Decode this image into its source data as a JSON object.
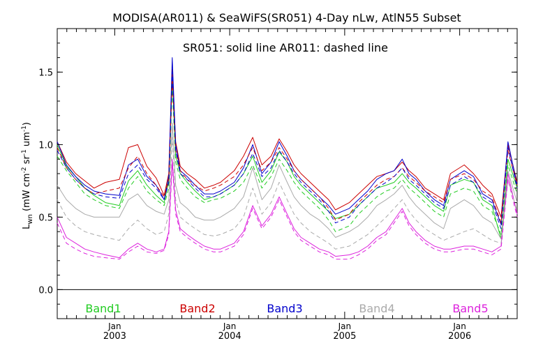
{
  "chart_data": {
    "type": "line",
    "title": "MODISA(AR011) & SeaWiFS(SR051) 4-Day nLw, AtlN55 Subset",
    "subtitle": "SR051: solid line   AR011: dashed line",
    "ylabel": "L_wn (mW cm^-2 sr^-1 um^-1)",
    "ylabel_parts": {
      "main": "L",
      "sub": "wn",
      "units_a": " (mW cm",
      "sup1": "-2",
      "units_b": " sr",
      "sup2": "-1",
      "units_c": " um",
      "sup3": "-1",
      "units_d": ")"
    },
    "xlim": [
      2002.5,
      2006.5
    ],
    "ylim": [
      -0.2,
      1.8
    ],
    "yticks": [
      0.0,
      0.5,
      1.0,
      1.5
    ],
    "ytick_labels": [
      "0.0",
      "0.5",
      "1.0",
      "1.5"
    ],
    "xticks": [
      2003,
      2004,
      2005,
      2006
    ],
    "xtick_month": [
      "Jan",
      "Jan",
      "Jan",
      "Jan"
    ],
    "xtick_year": [
      "2003",
      "2004",
      "2005",
      "2006"
    ],
    "zero_line": 0.0,
    "legend": [
      {
        "label": "Band1",
        "color": "#22cc22"
      },
      {
        "label": "Band2",
        "color": "#cc0000"
      },
      {
        "label": "Band3",
        "color": "#0000cc"
      },
      {
        "label": "Band4",
        "color": "#aaaaaa"
      },
      {
        "label": "Band5",
        "color": "#dd22dd"
      }
    ],
    "legend_placement": "bottom-inside",
    "x": [
      2002.5,
      2002.58,
      2002.66,
      2002.74,
      2002.82,
      2002.92,
      2003.04,
      2003.12,
      2003.2,
      2003.28,
      2003.36,
      2003.43,
      2003.47,
      2003.5,
      2003.53,
      2003.57,
      2003.63,
      2003.7,
      2003.78,
      2003.86,
      2003.92,
      2004.04,
      2004.12,
      2004.2,
      2004.28,
      2004.36,
      2004.43,
      2004.5,
      2004.56,
      2004.62,
      2004.7,
      2004.78,
      2004.86,
      2004.92,
      2005.04,
      2005.12,
      2005.2,
      2005.28,
      2005.36,
      2005.43,
      2005.5,
      2005.56,
      2005.62,
      2005.7,
      2005.78,
      2005.86,
      2005.92,
      2006.04,
      2006.12,
      2006.2,
      2006.28,
      2006.36,
      2006.42,
      2006.5
    ],
    "series": [
      {
        "key": "band1",
        "color": "#22cc22",
        "style": "solid",
        "values": [
          1.0,
          0.85,
          0.78,
          0.7,
          0.65,
          0.6,
          0.58,
          0.75,
          0.82,
          0.72,
          0.65,
          0.6,
          0.75,
          1.45,
          0.92,
          0.8,
          0.74,
          0.68,
          0.62,
          0.64,
          0.66,
          0.72,
          0.8,
          0.92,
          0.74,
          0.82,
          0.95,
          0.88,
          0.78,
          0.72,
          0.66,
          0.6,
          0.54,
          0.49,
          0.52,
          0.58,
          0.64,
          0.7,
          0.72,
          0.74,
          0.8,
          0.74,
          0.7,
          0.64,
          0.58,
          0.54,
          0.72,
          0.76,
          0.74,
          0.62,
          0.58,
          0.35,
          0.9,
          0.7
        ]
      },
      {
        "key": "band2",
        "color": "#cc0000",
        "style": "solid",
        "values": [
          1.02,
          0.88,
          0.8,
          0.75,
          0.7,
          0.74,
          0.76,
          0.98,
          1.0,
          0.85,
          0.77,
          0.65,
          0.8,
          1.52,
          1.02,
          0.85,
          0.8,
          0.76,
          0.7,
          0.72,
          0.74,
          0.82,
          0.92,
          1.05,
          0.86,
          0.92,
          1.04,
          0.95,
          0.86,
          0.8,
          0.74,
          0.68,
          0.62,
          0.55,
          0.6,
          0.66,
          0.72,
          0.78,
          0.8,
          0.82,
          0.88,
          0.82,
          0.78,
          0.7,
          0.66,
          0.62,
          0.8,
          0.86,
          0.8,
          0.72,
          0.66,
          0.5,
          1.0,
          0.74
        ]
      },
      {
        "key": "band3",
        "color": "#0000cc",
        "style": "solid",
        "values": [
          1.02,
          0.86,
          0.78,
          0.72,
          0.68,
          0.66,
          0.65,
          0.86,
          0.9,
          0.78,
          0.72,
          0.62,
          0.78,
          1.6,
          1.0,
          0.82,
          0.78,
          0.72,
          0.66,
          0.66,
          0.68,
          0.74,
          0.84,
          1.0,
          0.8,
          0.88,
          1.02,
          0.92,
          0.82,
          0.76,
          0.7,
          0.64,
          0.58,
          0.52,
          0.56,
          0.62,
          0.68,
          0.76,
          0.8,
          0.82,
          0.9,
          0.8,
          0.76,
          0.68,
          0.62,
          0.58,
          0.76,
          0.82,
          0.78,
          0.66,
          0.62,
          0.45,
          1.02,
          0.72
        ]
      },
      {
        "key": "band4",
        "color": "#aaaaaa",
        "style": "solid",
        "values": [
          0.72,
          0.62,
          0.56,
          0.52,
          0.5,
          0.5,
          0.5,
          0.62,
          0.66,
          0.58,
          0.54,
          0.52,
          0.62,
          1.15,
          0.72,
          0.6,
          0.56,
          0.5,
          0.48,
          0.48,
          0.5,
          0.56,
          0.64,
          0.84,
          0.62,
          0.7,
          0.86,
          0.74,
          0.64,
          0.58,
          0.52,
          0.48,
          0.42,
          0.36,
          0.4,
          0.44,
          0.5,
          0.58,
          0.62,
          0.66,
          0.72,
          0.64,
          0.58,
          0.52,
          0.46,
          0.42,
          0.56,
          0.62,
          0.58,
          0.5,
          0.46,
          0.35,
          0.82,
          0.6
        ]
      },
      {
        "key": "band5",
        "color": "#dd22dd",
        "style": "solid",
        "values": [
          0.5,
          0.36,
          0.32,
          0.28,
          0.26,
          0.24,
          0.22,
          0.28,
          0.32,
          0.28,
          0.26,
          0.28,
          0.4,
          0.9,
          0.55,
          0.42,
          0.38,
          0.34,
          0.3,
          0.28,
          0.28,
          0.32,
          0.4,
          0.58,
          0.44,
          0.52,
          0.64,
          0.52,
          0.42,
          0.36,
          0.32,
          0.28,
          0.26,
          0.23,
          0.24,
          0.26,
          0.3,
          0.36,
          0.4,
          0.48,
          0.56,
          0.46,
          0.4,
          0.34,
          0.3,
          0.28,
          0.28,
          0.3,
          0.3,
          0.28,
          0.26,
          0.3,
          0.8,
          0.52
        ]
      },
      {
        "key": "band1_modis",
        "color": "#22cc22",
        "style": "dashed",
        "values": [
          0.92,
          0.82,
          0.74,
          0.66,
          0.62,
          0.58,
          0.56,
          0.7,
          0.78,
          0.68,
          0.62,
          0.58,
          0.7,
          1.4,
          0.88,
          0.76,
          0.7,
          0.64,
          0.6,
          0.62,
          0.63,
          0.68,
          0.74,
          0.86,
          0.7,
          0.78,
          0.9,
          0.82,
          0.74,
          0.68,
          0.62,
          0.56,
          0.48,
          0.4,
          0.44,
          0.52,
          0.58,
          0.64,
          0.68,
          0.7,
          0.76,
          0.7,
          0.66,
          0.6,
          0.54,
          0.5,
          0.66,
          0.7,
          0.68,
          0.58,
          0.54,
          0.38,
          0.86,
          0.66
        ]
      },
      {
        "key": "band2_modis",
        "color": "#cc0000",
        "style": "dashed",
        "values": [
          0.98,
          0.84,
          0.76,
          0.7,
          0.66,
          0.68,
          0.7,
          0.84,
          0.92,
          0.8,
          0.72,
          0.64,
          0.76,
          1.46,
          0.96,
          0.82,
          0.76,
          0.72,
          0.68,
          0.7,
          0.72,
          0.78,
          0.86,
          0.98,
          0.82,
          0.88,
          0.98,
          0.9,
          0.82,
          0.76,
          0.7,
          0.64,
          0.56,
          0.48,
          0.52,
          0.6,
          0.66,
          0.72,
          0.76,
          0.78,
          0.84,
          0.78,
          0.74,
          0.68,
          0.64,
          0.6,
          0.76,
          0.8,
          0.76,
          0.68,
          0.64,
          0.46,
          0.96,
          0.72
        ]
      },
      {
        "key": "band3_modis",
        "color": "#0000cc",
        "style": "dashed",
        "values": [
          0.96,
          0.84,
          0.76,
          0.7,
          0.66,
          0.64,
          0.63,
          0.8,
          0.86,
          0.76,
          0.7,
          0.62,
          0.74,
          1.5,
          0.96,
          0.8,
          0.76,
          0.7,
          0.64,
          0.64,
          0.66,
          0.72,
          0.8,
          0.94,
          0.78,
          0.84,
          0.96,
          0.88,
          0.8,
          0.74,
          0.68,
          0.62,
          0.54,
          0.46,
          0.5,
          0.58,
          0.64,
          0.7,
          0.74,
          0.78,
          0.84,
          0.76,
          0.72,
          0.66,
          0.6,
          0.56,
          0.72,
          0.78,
          0.74,
          0.64,
          0.6,
          0.42,
          0.98,
          0.7
        ]
      },
      {
        "key": "band4_modis",
        "color": "#aaaaaa",
        "style": "dashed",
        "values": [
          0.62,
          0.5,
          0.44,
          0.4,
          0.38,
          0.36,
          0.34,
          0.42,
          0.48,
          0.42,
          0.38,
          0.4,
          0.52,
          1.05,
          0.62,
          0.5,
          0.46,
          0.42,
          0.38,
          0.37,
          0.38,
          0.42,
          0.5,
          0.7,
          0.52,
          0.6,
          0.74,
          0.62,
          0.52,
          0.46,
          0.4,
          0.36,
          0.32,
          0.28,
          0.3,
          0.34,
          0.38,
          0.44,
          0.5,
          0.56,
          0.62,
          0.54,
          0.48,
          0.42,
          0.38,
          0.34,
          0.36,
          0.4,
          0.42,
          0.38,
          0.34,
          0.32,
          0.76,
          0.54
        ]
      },
      {
        "key": "band5_modis",
        "color": "#dd22dd",
        "style": "dashed",
        "values": [
          0.46,
          0.32,
          0.28,
          0.25,
          0.23,
          0.22,
          0.21,
          0.26,
          0.3,
          0.26,
          0.25,
          0.27,
          0.38,
          0.86,
          0.52,
          0.4,
          0.36,
          0.32,
          0.28,
          0.26,
          0.26,
          0.3,
          0.38,
          0.56,
          0.42,
          0.5,
          0.62,
          0.5,
          0.4,
          0.34,
          0.3,
          0.26,
          0.24,
          0.21,
          0.21,
          0.24,
          0.28,
          0.34,
          0.38,
          0.46,
          0.54,
          0.44,
          0.38,
          0.32,
          0.28,
          0.26,
          0.26,
          0.28,
          0.28,
          0.26,
          0.24,
          0.28,
          0.76,
          0.5
        ]
      }
    ]
  }
}
